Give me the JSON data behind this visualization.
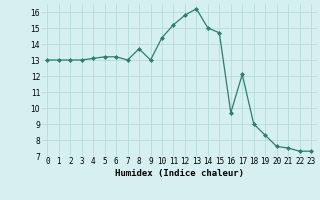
{
  "xlabel": "Humidex (Indice chaleur)",
  "x": [
    0,
    1,
    2,
    3,
    4,
    5,
    6,
    7,
    8,
    9,
    10,
    11,
    12,
    13,
    14,
    15,
    16,
    17,
    18,
    19,
    20,
    21,
    22,
    23
  ],
  "y": [
    13,
    13,
    13,
    13,
    13.1,
    13.2,
    13.2,
    13,
    13.7,
    13,
    14.4,
    15.2,
    15.8,
    16.2,
    15,
    14.7,
    9.7,
    12.1,
    9,
    8.3,
    7.6,
    7.5,
    7.3,
    7.3
  ],
  "line_color": "#2e7d6e",
  "marker": "D",
  "marker_size": 2.0,
  "bg_color": "#d6eff0",
  "grid_color": "#b0d8d8",
  "ylim": [
    7,
    16.5
  ],
  "xlim": [
    -0.5,
    23.5
  ],
  "yticks": [
    7,
    8,
    9,
    10,
    11,
    12,
    13,
    14,
    15,
    16
  ],
  "xtick_labels": [
    "0",
    "1",
    "2",
    "3",
    "4",
    "5",
    "6",
    "7",
    "8",
    "9",
    "10",
    "11",
    "12",
    "13",
    "14",
    "15",
    "16",
    "17",
    "18",
    "19",
    "20",
    "21",
    "22",
    "23"
  ],
  "axis_fontsize": 6.0,
  "tick_fontsize": 5.5,
  "xlabel_fontsize": 6.5
}
